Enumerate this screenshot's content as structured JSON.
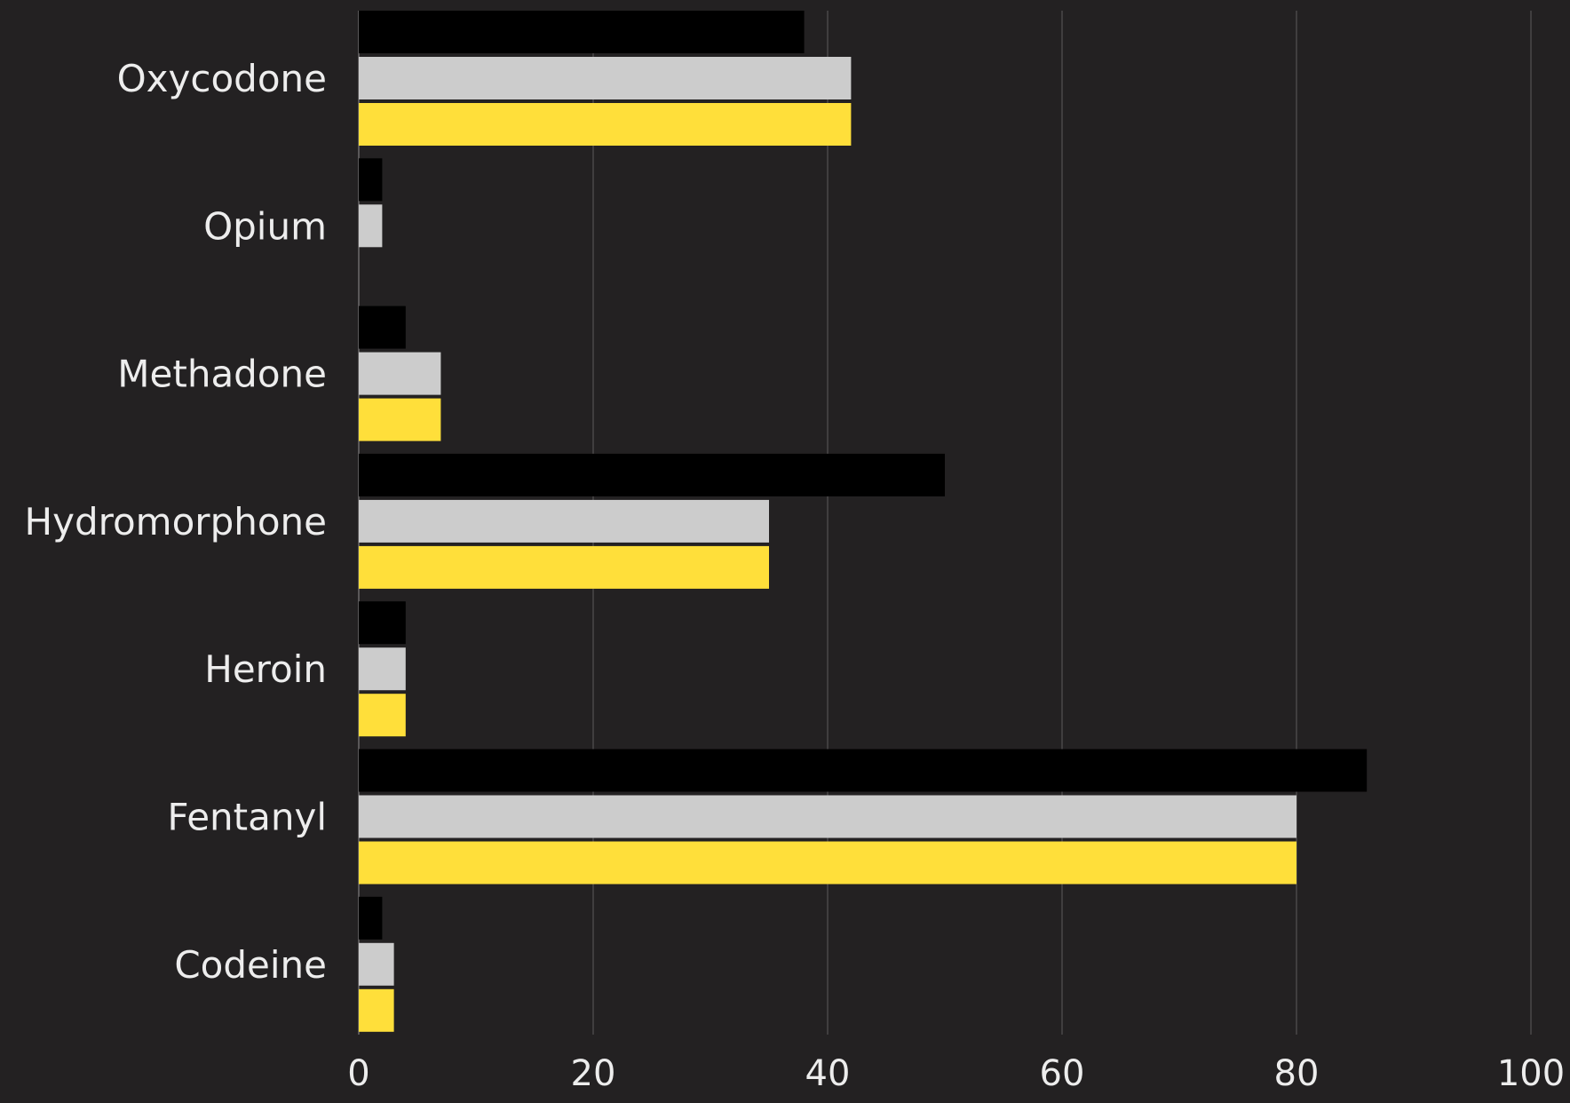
{
  "chart_data": {
    "type": "bar",
    "orientation": "horizontal",
    "categories": [
      "Oxycodone",
      "Opium",
      "Methadone",
      "Hydromorphone",
      "Heroin",
      "Fentanyl",
      "Codeine"
    ],
    "series": [
      {
        "color": "#000000",
        "values": [
          38,
          2,
          4,
          50,
          4,
          86,
          2
        ]
      },
      {
        "color": "#cccccc",
        "values": [
          42,
          2,
          7,
          35,
          4,
          80,
          3
        ]
      },
      {
        "color": "#ffdf3a",
        "values": [
          42,
          0,
          7,
          35,
          4,
          80,
          3
        ]
      }
    ],
    "xlim": [
      0,
      100
    ],
    "xticks": [
      0,
      20,
      40,
      60,
      80,
      100
    ],
    "title": "",
    "xlabel": "",
    "ylabel": "",
    "grid": "vertical",
    "legend": "none"
  }
}
